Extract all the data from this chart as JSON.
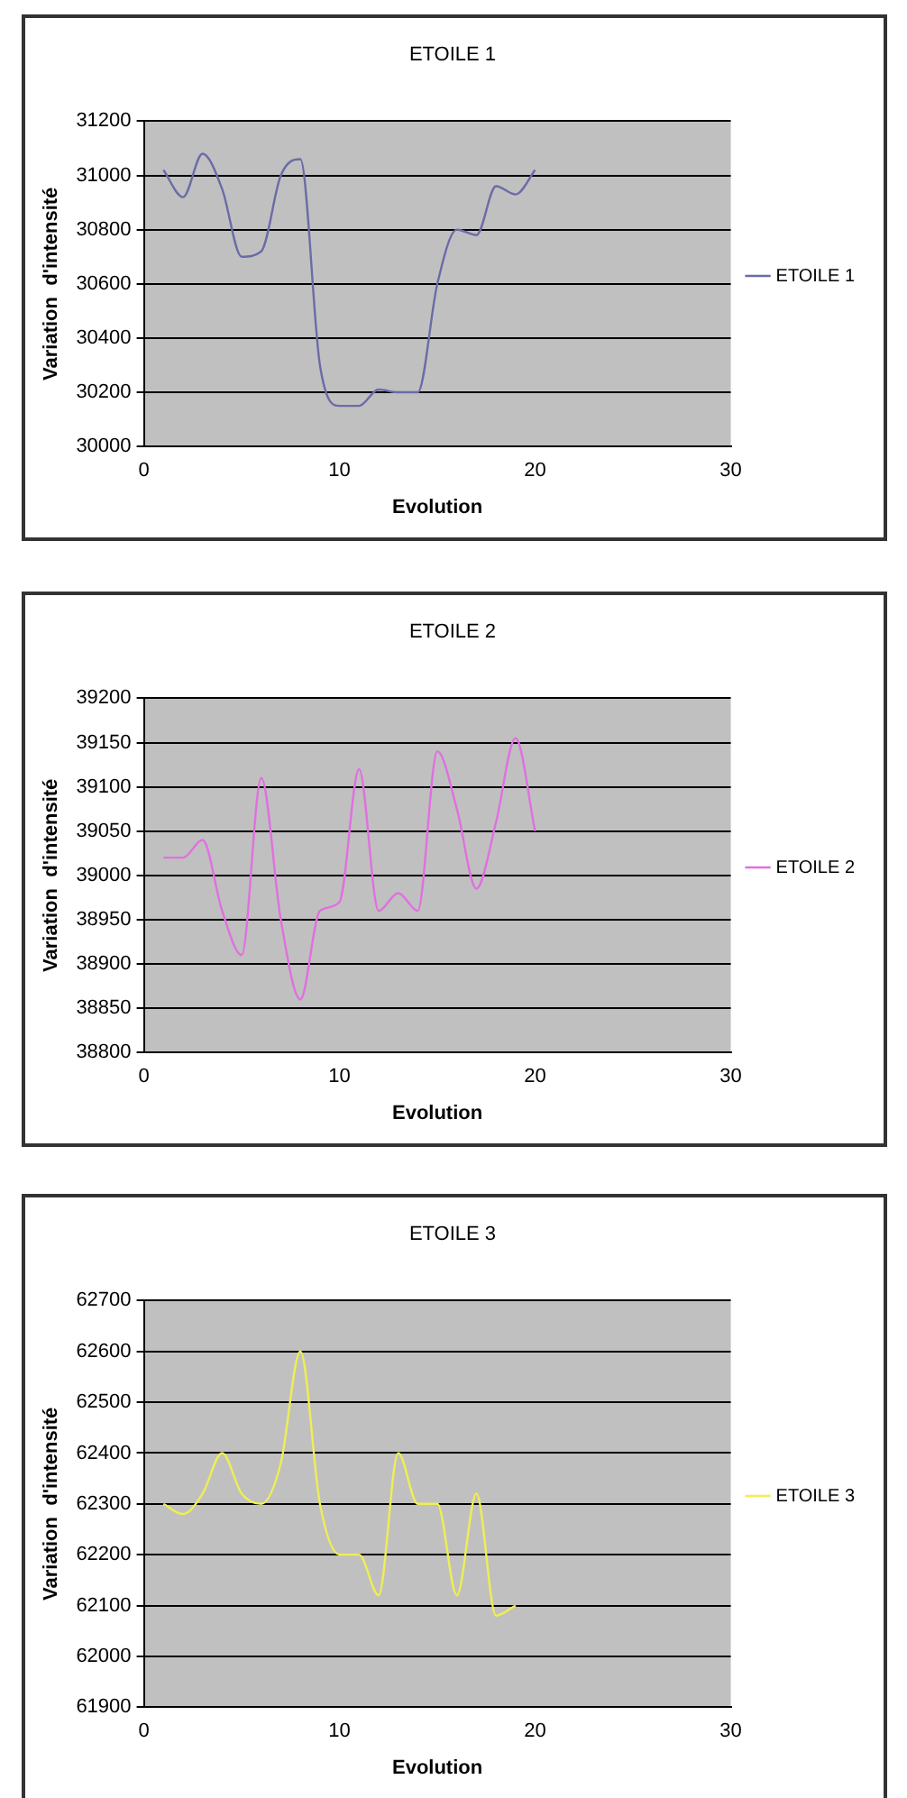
{
  "chart_data": [
    {
      "type": "line",
      "title": "ETOILE 1",
      "xlabel": "Evolution",
      "ylabel": "Variation  d'intensité",
      "xlim": [
        0,
        30
      ],
      "xticks": [
        0,
        10,
        20,
        30
      ],
      "ylim": [
        30000,
        31200
      ],
      "yticks": [
        30000,
        30200,
        30400,
        30600,
        30800,
        31000,
        31200
      ],
      "grid": "y",
      "legend": "right",
      "marker": "none",
      "series": [
        {
          "name": "ETOILE 1",
          "color": "#6b6ba8",
          "x": [
            1,
            2,
            3,
            4,
            5,
            6,
            7,
            8,
            9,
            10,
            11,
            12,
            13,
            14,
            15,
            16,
            17,
            18,
            19,
            20
          ],
          "values": [
            31020,
            30920,
            31080,
            30950,
            30700,
            30720,
            31000,
            31060,
            30300,
            30150,
            30150,
            30210,
            30200,
            30200,
            30600,
            30800,
            30780,
            30960,
            30930,
            31020
          ]
        }
      ]
    },
    {
      "type": "line",
      "title": "ETOILE 2",
      "xlabel": "Evolution",
      "ylabel": "Variation  d'intensité",
      "xlim": [
        0,
        30
      ],
      "xticks": [
        0,
        10,
        20,
        30
      ],
      "ylim": [
        38800,
        39200
      ],
      "yticks": [
        38800,
        38850,
        38900,
        38950,
        39000,
        39050,
        39100,
        39150,
        39200
      ],
      "grid": "y",
      "legend": "right",
      "marker": "none",
      "series": [
        {
          "name": "ETOILE 2",
          "color": "#e070e0",
          "x": [
            1,
            2,
            3,
            4,
            5,
            6,
            7,
            8,
            9,
            10,
            11,
            12,
            13,
            14,
            15,
            16,
            17,
            18,
            19,
            20
          ],
          "values": [
            39020,
            39020,
            39040,
            38960,
            38910,
            39110,
            38950,
            38860,
            38960,
            38970,
            39120,
            38960,
            38980,
            38960,
            39140,
            39075,
            38985,
            39060,
            39155,
            39050
          ]
        }
      ]
    },
    {
      "type": "line",
      "title": "ETOILE 3",
      "xlabel": "Evolution",
      "ylabel": "Variation  d'intensité",
      "xlim": [
        0,
        30
      ],
      "xticks": [
        0,
        10,
        20,
        30
      ],
      "ylim": [
        61900,
        62700
      ],
      "yticks": [
        61900,
        62000,
        62100,
        62200,
        62300,
        62400,
        62500,
        62600,
        62700
      ],
      "grid": "y",
      "legend": "right",
      "marker": "none",
      "series": [
        {
          "name": "ETOILE 3",
          "color": "#eeee55",
          "x": [
            1,
            2,
            3,
            4,
            5,
            6,
            7,
            8,
            9,
            10,
            11,
            12,
            13,
            14,
            15,
            16,
            17,
            18,
            19
          ],
          "values": [
            62300,
            62280,
            62320,
            62400,
            62320,
            62300,
            62380,
            62600,
            62300,
            62200,
            62200,
            62120,
            62400,
            62300,
            62300,
            62120,
            62320,
            62080,
            62100
          ]
        }
      ]
    }
  ]
}
